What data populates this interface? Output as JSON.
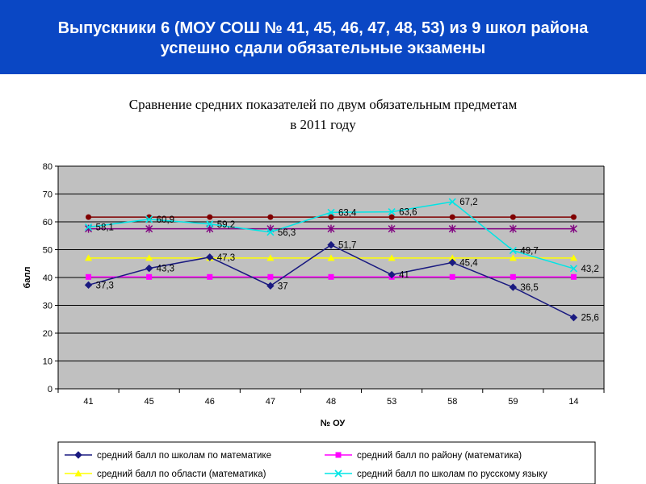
{
  "banner": {
    "line1": "Выпускники 6 (МОУ СОШ № 41, 45, 46, 47, 48, 53) из 9  школ района",
    "line2": "успешно сдали обязательные экзамены"
  },
  "colors": {
    "banner_bg": "#0a47c4",
    "plot_bg": "#c0c0c0",
    "math_schools": "#1a1a80",
    "math_district": "#ff00ff",
    "math_region": "#ffff00",
    "russian_schools": "#00e5e5",
    "russian_district": "#800000",
    "russian_region": "#800080"
  },
  "chart_data": {
    "type": "line",
    "title_line1": "Сравнение средних показателей по двум обязательным предметам",
    "title_line2": "в 2011 году",
    "xlabel": "№ ОУ",
    "ylabel": "балл",
    "ylim": [
      0,
      80
    ],
    "yticks": [
      0,
      10,
      20,
      30,
      40,
      50,
      60,
      70,
      80
    ],
    "grid": true,
    "legend_position": "bottom",
    "categories": [
      "41",
      "45",
      "46",
      "47",
      "48",
      "53",
      "58",
      "59",
      "14"
    ],
    "series": [
      {
        "name": "средний балл по школам по математике",
        "values": [
          37.3,
          43.3,
          47.3,
          37,
          51.7,
          41,
          45.4,
          36.5,
          25.6
        ],
        "labels": [
          "37,3",
          "43,3",
          "47,3",
          "37",
          "51,7",
          "41",
          "45,4",
          "36,5",
          "25,6"
        ],
        "marker": "diamond",
        "color_key": "math_schools"
      },
      {
        "name": "средний балл по району (математика)",
        "values": [
          40.2,
          40.2,
          40.2,
          40.2,
          40.2,
          40.2,
          40.2,
          40.2,
          40.2
        ],
        "marker": "square",
        "color_key": "math_district"
      },
      {
        "name": "средний балл по области (математика)",
        "values": [
          47,
          47,
          47,
          47,
          47,
          47,
          47,
          47,
          47
        ],
        "marker": "triangle",
        "color_key": "math_region"
      },
      {
        "name": "средний балл по школам по русскому языку",
        "values": [
          58.1,
          60.9,
          59.2,
          56.3,
          63.4,
          63.6,
          67.2,
          49.7,
          43.2
        ],
        "labels": [
          "58,1",
          "60,9",
          "59,2",
          "56,3",
          "63,4",
          "63,6",
          "67,2",
          "49,7",
          "43,2"
        ],
        "marker": "x",
        "color_key": "russian_schools"
      },
      {
        "values": [
          61.7,
          61.7,
          61.7,
          61.7,
          61.7,
          61.7,
          61.7,
          61.7,
          61.7
        ],
        "marker": "circle",
        "color_key": "russian_district"
      },
      {
        "values": [
          57.5,
          57.5,
          57.5,
          57.5,
          57.5,
          57.5,
          57.5,
          57.5,
          57.5
        ],
        "marker": "star",
        "color_key": "russian_region"
      }
    ]
  }
}
